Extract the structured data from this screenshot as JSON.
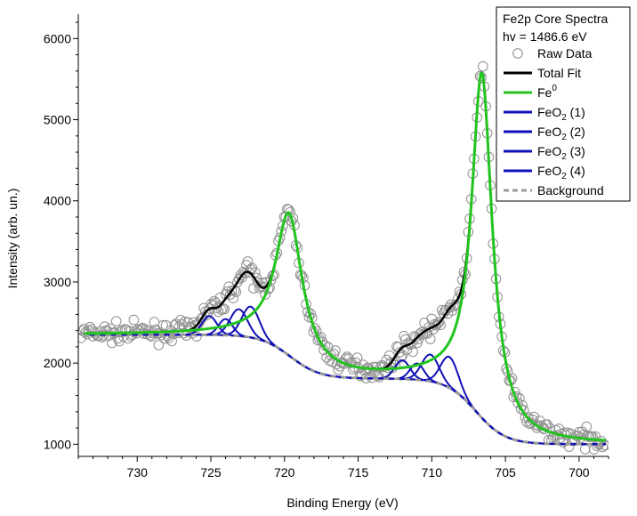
{
  "chart_data": {
    "type": "scatter",
    "title": "Fe2p Core Spectra",
    "subtitle": "hv = 1486.6 eV",
    "xlabel": "Binding Energy (eV)",
    "ylabel": "Intensity (arb. un.)",
    "xlim": [
      734,
      698
    ],
    "ylim": [
      850,
      6300
    ],
    "x_reversed": true,
    "x_ticks": [
      730,
      725,
      720,
      715,
      710,
      705,
      700
    ],
    "y_ticks": [
      1000,
      2000,
      3000,
      4000,
      5000,
      6000
    ],
    "legend_position": "top-right",
    "legend": [
      {
        "key": "raw",
        "label": "Raw Data",
        "style": "circle",
        "color": "#8c8c8c"
      },
      {
        "key": "total",
        "label": "Total Fit",
        "style": "line",
        "color": "#000000"
      },
      {
        "key": "fe0",
        "label": "Fe",
        "sup": "0",
        "style": "line",
        "color": "#22c41f"
      },
      {
        "key": "feo2_1",
        "label": "FeO",
        "sub": "2",
        "suffix": " (1)",
        "style": "line",
        "color": "#1010b8"
      },
      {
        "key": "feo2_2",
        "label": "FeO",
        "sub": "2",
        "suffix": " (2)",
        "style": "line",
        "color": "#1010b8"
      },
      {
        "key": "feo2_3",
        "label": "FeO",
        "sub": "2",
        "suffix": " (3)",
        "style": "line",
        "color": "#1010b8"
      },
      {
        "key": "feo2_4",
        "label": "FeO",
        "sub": "2",
        "suffix": " (4)",
        "style": "line",
        "color": "#1010b8"
      },
      {
        "key": "background",
        "label": "Background",
        "style": "dashed",
        "color": "#999999"
      }
    ],
    "background": {
      "low": 1000,
      "high": 2350,
      "l3_center": 707,
      "l3_width": 1.0,
      "l3_step": 0.6,
      "l2_center": 719.6,
      "l2_width": 1.0,
      "l2_step": 0.4
    },
    "fe0_peaks": [
      {
        "center": 706.6,
        "amplitude": 4240,
        "fwhm": 1.7
      },
      {
        "center": 719.7,
        "amplitude": 1740,
        "fwhm": 2.2
      }
    ],
    "feo2_components": [
      {
        "name": "FeO2 (1)",
        "centers": [
          708.8,
          722.3
        ],
        "amplitude": 380,
        "fwhm": 1.4
      },
      {
        "name": "FeO2 (2)",
        "centers": [
          710.1,
          723.1
        ],
        "amplitude": 330,
        "fwhm": 1.4
      },
      {
        "name": "FeO2 (3)",
        "centers": [
          711.0,
          724.0
        ],
        "amplitude": 200,
        "fwhm": 1.1
      },
      {
        "name": "FeO2 (4)",
        "centers": [
          712.0,
          725.1
        ],
        "amplitude": 230,
        "fwhm": 1.2
      }
    ],
    "raw_data_noise": 55,
    "raw_data_x_range": [
      733.8,
      698.2
    ],
    "raw_data_count": 360
  }
}
